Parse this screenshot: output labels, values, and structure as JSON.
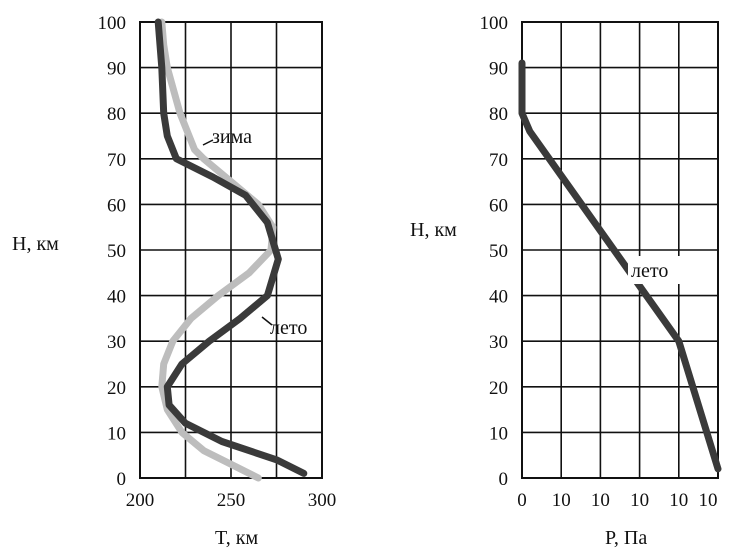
{
  "chart_data": [
    {
      "type": "line",
      "xlabel": "T,  км",
      "ylabel": "H,  км",
      "xlim": [
        200,
        300
      ],
      "ylim": [
        0,
        100
      ],
      "x_ticks": [
        "200",
        "250",
        "300"
      ],
      "y_ticks": [
        "0",
        "10",
        "20",
        "30",
        "40",
        "50",
        "60",
        "70",
        "80",
        "90",
        "100"
      ],
      "series": [
        {
          "name": "зима",
          "color": "#bdbdbd",
          "x": [
            265,
            250,
            235,
            223,
            215,
            212,
            213,
            218,
            228,
            243,
            260,
            272,
            273,
            265,
            250,
            235,
            230,
            222,
            215,
            213,
            212
          ],
          "y": [
            0,
            3,
            6,
            10,
            15,
            20,
            25,
            30,
            35,
            40,
            45,
            50,
            55,
            60,
            65,
            70,
            72,
            80,
            90,
            95,
            100
          ]
        },
        {
          "name": "лето",
          "color": "#3a3a3a",
          "x": [
            290,
            275,
            245,
            225,
            216,
            215,
            223,
            238,
            255,
            270,
            276,
            270,
            258,
            240,
            220,
            215,
            213,
            212,
            211,
            210
          ],
          "y": [
            1,
            4,
            8,
            12,
            16,
            20,
            25,
            30,
            35,
            40,
            48,
            56,
            62,
            66,
            70,
            75,
            80,
            90,
            95,
            100
          ]
        }
      ],
      "annotations": [
        "зима",
        "лето"
      ],
      "grid": true
    },
    {
      "type": "line",
      "xlabel": "P,  Па",
      "ylabel": "H,  км",
      "ylim": [
        0,
        100
      ],
      "x_ticks": [
        "0",
        "10",
        "10",
        "10",
        "10",
        "10"
      ],
      "y_ticks": [
        "0",
        "10",
        "20",
        "30",
        "40",
        "50",
        "60",
        "70",
        "80",
        "90",
        "100"
      ],
      "series": [
        {
          "name": "лето",
          "color": "#3a3a3a",
          "x": [
            5,
            4,
            0.2,
            0,
            0,
            0
          ],
          "y": [
            2,
            30,
            76,
            80,
            85,
            91
          ]
        }
      ],
      "annotations": [
        "лето"
      ],
      "grid": true
    }
  ]
}
